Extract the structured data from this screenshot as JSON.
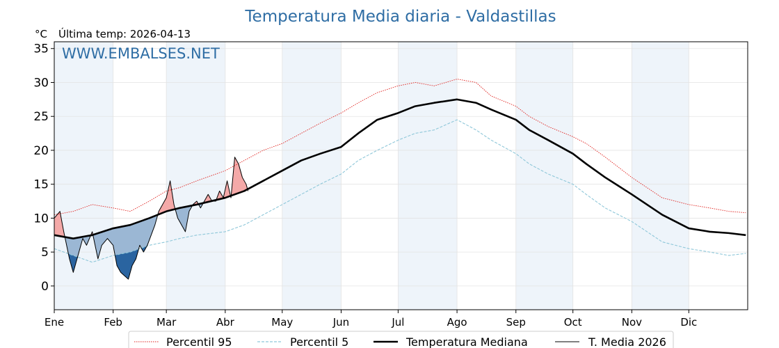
{
  "title": "Temperatura Media diaria - Valdastillas",
  "unit_label": "°C",
  "last_temp_label": "Última temp: 2026-04-13",
  "watermark": "WWW.EMBALSES.NET",
  "colors": {
    "title": "#2e6da4",
    "watermark": "#2e6da4",
    "p95": "#e0201c",
    "p5": "#8ec7d9",
    "median": "#000000",
    "current": "#000000",
    "above_fill": "#f4a9a8",
    "below_fill_light": "#9bb7d4",
    "below_fill_dark": "#2a64a0",
    "band": "#eef4fa"
  },
  "chart_data": {
    "type": "line",
    "title": "Temperatura Media diaria - Valdastillas",
    "ylabel": "°C",
    "ylim": [
      -3.5,
      36
    ],
    "yticks": [
      0,
      5,
      10,
      15,
      20,
      25,
      30,
      35
    ],
    "xlim": [
      0,
      365
    ],
    "months": [
      {
        "label": "Ene",
        "day": 0
      },
      {
        "label": "Feb",
        "day": 31
      },
      {
        "label": "Mar",
        "day": 59
      },
      {
        "label": "Abr",
        "day": 90
      },
      {
        "label": "May",
        "day": 120
      },
      {
        "label": "Jun",
        "day": 151
      },
      {
        "label": "Jul",
        "day": 181
      },
      {
        "label": "Ago",
        "day": 212
      },
      {
        "label": "Sep",
        "day": 243
      },
      {
        "label": "Oct",
        "day": 273
      },
      {
        "label": "Nov",
        "day": 304
      },
      {
        "label": "Dic",
        "day": 334
      }
    ],
    "grid": true,
    "legend_position": "bottom",
    "series": [
      {
        "name": "Percentil 95",
        "style": "dotted",
        "x": [
          0,
          10,
          20,
          31,
          40,
          50,
          59,
          66,
          75,
          90,
          100,
          110,
          120,
          130,
          140,
          151,
          160,
          170,
          181,
          190,
          200,
          212,
          222,
          230,
          243,
          250,
          260,
          273,
          280,
          290,
          304,
          312,
          320,
          334,
          345,
          355,
          364
        ],
        "y": [
          10.5,
          11,
          12,
          11.5,
          11,
          12.5,
          14,
          14.5,
          15.5,
          17,
          18.5,
          20,
          21,
          22.5,
          24,
          25.5,
          27,
          28.5,
          29.5,
          30,
          29.5,
          30.5,
          30,
          28,
          26.5,
          25,
          23.5,
          22,
          21,
          19,
          16,
          14.5,
          13,
          12,
          11.5,
          11,
          10.8
        ]
      },
      {
        "name": "Percentil 5",
        "style": "dashed",
        "x": [
          0,
          10,
          20,
          31,
          40,
          50,
          59,
          66,
          75,
          90,
          100,
          110,
          120,
          130,
          140,
          151,
          160,
          170,
          181,
          190,
          200,
          212,
          222,
          230,
          243,
          250,
          260,
          273,
          280,
          290,
          304,
          312,
          320,
          334,
          345,
          355,
          364
        ],
        "y": [
          5.5,
          4.5,
          3.5,
          4.5,
          5,
          6,
          6.5,
          7,
          7.5,
          8,
          9,
          10.5,
          12,
          13.5,
          15,
          16.5,
          18.5,
          20,
          21.5,
          22.5,
          23,
          24.5,
          23,
          21.5,
          19.5,
          18,
          16.5,
          15,
          13.5,
          11.5,
          9.5,
          8,
          6.5,
          5.5,
          5,
          4.5,
          4.8
        ]
      },
      {
        "name": "Temperatura Mediana",
        "style": "solid-thick",
        "x": [
          0,
          10,
          20,
          31,
          40,
          50,
          59,
          66,
          75,
          90,
          100,
          110,
          120,
          130,
          140,
          151,
          160,
          170,
          181,
          190,
          200,
          212,
          222,
          230,
          243,
          250,
          260,
          273,
          280,
          290,
          304,
          312,
          320,
          334,
          345,
          355,
          364
        ],
        "y": [
          7.5,
          7,
          7.5,
          8.5,
          9,
          10,
          11,
          11.5,
          12,
          13,
          14,
          15.5,
          17,
          18.5,
          19.5,
          20.5,
          22.5,
          24.5,
          25.5,
          26.5,
          27,
          27.5,
          27,
          26,
          24.5,
          23,
          21.5,
          19.5,
          18,
          16,
          13.5,
          12,
          10.5,
          8.5,
          8,
          7.8,
          7.5
        ]
      },
      {
        "name": "T. Media 2026",
        "style": "solid-thin",
        "x": [
          0,
          3,
          5,
          8,
          10,
          13,
          15,
          17,
          20,
          23,
          25,
          28,
          31,
          33,
          35,
          37,
          39,
          41,
          43,
          45,
          47,
          49,
          51,
          53,
          55,
          57,
          59,
          61,
          63,
          65,
          67,
          69,
          71,
          73,
          75,
          77,
          79,
          81,
          83,
          85,
          87,
          89,
          91,
          93,
          95,
          97,
          99,
          101,
          102
        ],
        "y": [
          10,
          11,
          8,
          4,
          2,
          5,
          7,
          6,
          8,
          4,
          6,
          7,
          6,
          3,
          2,
          1.5,
          1,
          3,
          4,
          6,
          5,
          6,
          7.5,
          9,
          11,
          12,
          13,
          15.5,
          12,
          10,
          9,
          8,
          11,
          12,
          12.5,
          11.5,
          12.5,
          13.5,
          12.5,
          12.5,
          14,
          13,
          15.5,
          13,
          19,
          18,
          16,
          15,
          14
        ]
      }
    ],
    "legend": [
      "Percentil 95",
      "Percentil 5",
      "Temperatura Mediana",
      "T. Media 2026"
    ]
  }
}
